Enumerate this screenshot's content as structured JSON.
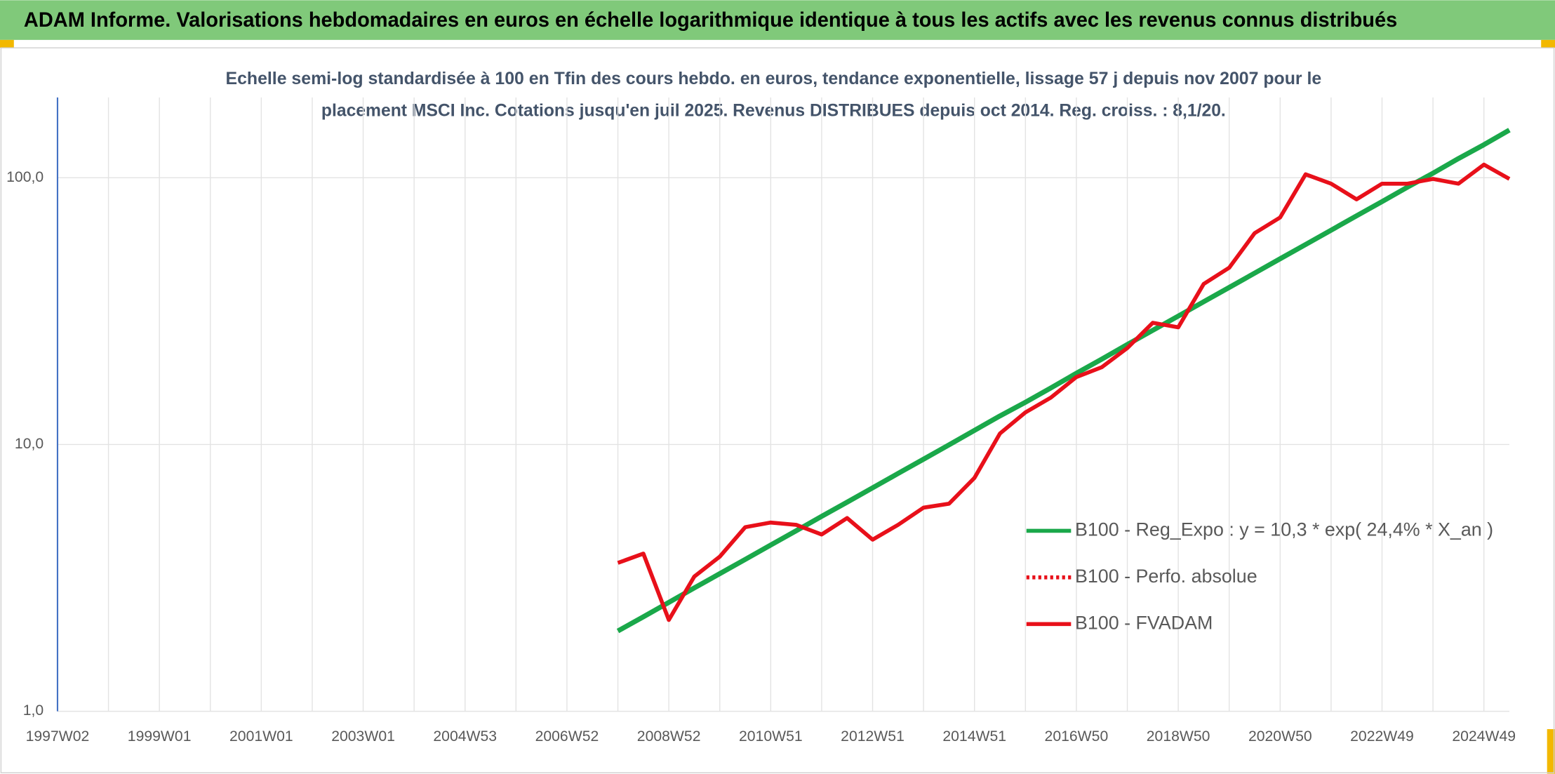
{
  "header": {
    "title": "ADAM Informe. Valorisations hebdomadaires en euros en échelle logarithmique identique à tous les actifs avec les revenus connus distribués"
  },
  "chart_data": {
    "type": "line",
    "subtitle": [
      "Echelle semi-log standardisée à 100 en Tfin des cours hebdo. en euros, tendance exponentielle, lissage 57 j depuis nov 2007 pour le",
      "placement MSCI Inc. Cotations jusqu'en juil 2025. Revenus DISTRIBUES depuis oct 2014. Reg. croiss. : 8,1/20."
    ],
    "categories": [
      "1997W02",
      null,
      null,
      null,
      "1999W01",
      null,
      null,
      null,
      "2001W01",
      null,
      null,
      null,
      "2003W01",
      null,
      null,
      null,
      "2004W53",
      null,
      null,
      null,
      "2006W52",
      null,
      null,
      null,
      "2008W52",
      null,
      null,
      null,
      "2010W51",
      null,
      null,
      null,
      "2012W51",
      null,
      null,
      null,
      "2014W51",
      null,
      null,
      null,
      "2016W50",
      null,
      null,
      null,
      "2018W50",
      null,
      null,
      null,
      "2020W50",
      null,
      null,
      null,
      "2022W49",
      null,
      null,
      null,
      "2024W49",
      null
    ],
    "log_y": true,
    "ylim": [
      1,
      200
    ],
    "yticks": [
      {
        "value": 1,
        "label": "1,0"
      },
      {
        "value": 10,
        "label": "10,0"
      },
      {
        "value": 100,
        "label": "100,0"
      }
    ],
    "grid": true,
    "legend": "right",
    "series": [
      {
        "name": "B100 - Reg_Expo : y = 10,3 * exp( 24,4% *  X_an )",
        "color": "#1aa84a",
        "dash": "solid",
        "values": [
          null,
          null,
          null,
          null,
          null,
          null,
          null,
          null,
          null,
          null,
          null,
          null,
          null,
          null,
          null,
          null,
          null,
          null,
          null,
          null,
          null,
          null,
          2.0,
          2.26,
          2.56,
          2.9,
          3.28,
          3.71,
          4.2,
          4.75,
          5.38,
          6.08,
          6.88,
          7.79,
          8.81,
          9.97,
          11.3,
          12.8,
          14.4,
          16.3,
          18.5,
          20.9,
          23.7,
          26.8,
          30.3,
          34.3,
          38.8,
          43.9,
          49.7,
          56.2,
          63.6,
          72.0,
          81.4,
          92.2,
          104,
          118,
          133,
          151
        ]
      },
      {
        "name": "B100 - Perfo. absolue",
        "color": "#e8101a",
        "dash": "dotted",
        "values": [
          null,
          null,
          null,
          null,
          null,
          null,
          null,
          null,
          null,
          null,
          null,
          null,
          null,
          null,
          null,
          null,
          null,
          null,
          null,
          null,
          null,
          null,
          null,
          null,
          null,
          null,
          null,
          null,
          null,
          null,
          null,
          null,
          null,
          null,
          null,
          null,
          null,
          null,
          null,
          null,
          null,
          null,
          null,
          null,
          null,
          null,
          null,
          null,
          null,
          null,
          null,
          null,
          null,
          null,
          null,
          null,
          null,
          null
        ]
      },
      {
        "name": "B100 - FVADAM",
        "color": "#e8101a",
        "dash": "solid",
        "values": [
          null,
          null,
          null,
          null,
          null,
          null,
          null,
          null,
          null,
          null,
          null,
          null,
          null,
          null,
          null,
          null,
          null,
          null,
          null,
          null,
          null,
          null,
          3.6,
          3.9,
          2.2,
          3.2,
          3.8,
          4.9,
          5.1,
          5.0,
          4.6,
          5.3,
          4.4,
          5.0,
          5.8,
          6.0,
          7.5,
          11,
          13.2,
          15,
          17.9,
          19.5,
          23,
          28.6,
          27.5,
          40,
          46,
          62,
          71,
          103,
          95,
          83,
          95,
          95,
          99,
          95,
          112,
          99
        ]
      }
    ]
  }
}
